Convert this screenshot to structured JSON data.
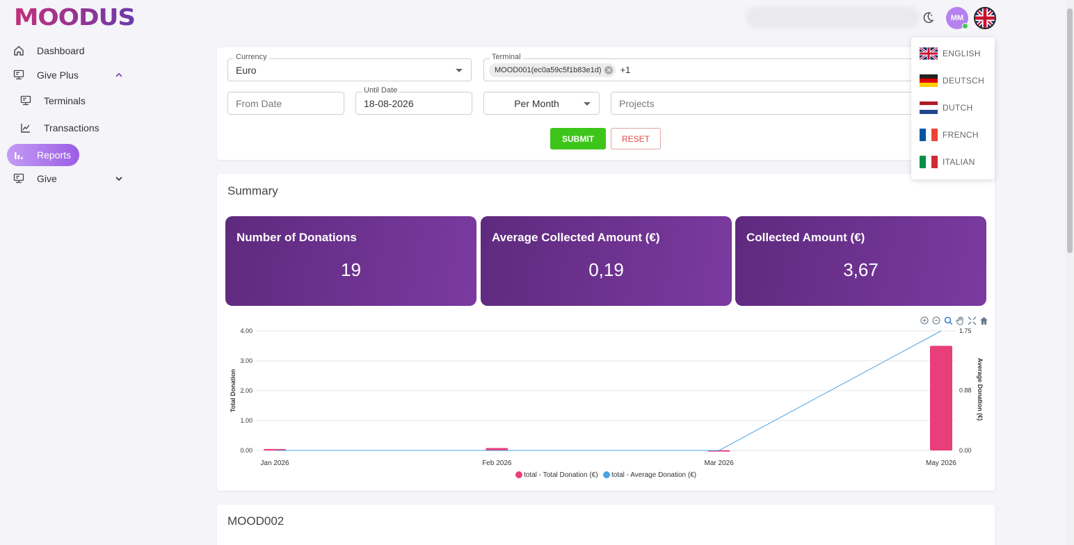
{
  "brand": {
    "logo_text": "MOODUS"
  },
  "sidebar": {
    "items": [
      {
        "label": "Dashboard",
        "icon": "home-icon"
      },
      {
        "label": "Give Plus",
        "icon": "terminal-icon"
      },
      {
        "label": "Terminals",
        "icon": "terminal-icon"
      },
      {
        "label": "Transactions",
        "icon": "chart-line-icon"
      },
      {
        "label": "Reports",
        "icon": "bar-chart-icon"
      },
      {
        "label": "Give",
        "icon": "terminal-icon"
      }
    ]
  },
  "topbar": {
    "avatar_initials": "MM"
  },
  "filters": {
    "currency_label": "Currency",
    "currency_value": "Euro",
    "terminal_label": "Terminal",
    "terminal_chip": "MOOD001(ec0a59c5f1b83e1d)",
    "terminal_more": "+1",
    "from_date_placeholder": "From Date",
    "until_date_label": "Until Date",
    "until_date_value": "18-08-2026",
    "period_value": "Per Month",
    "projects_placeholder": "Projects",
    "submit_label": "SUBMIT",
    "reset_label": "RESET"
  },
  "summary": {
    "title": "Summary",
    "stats": [
      {
        "title": "Number of Donations",
        "value": "19"
      },
      {
        "title": "Average Collected Amount (€)",
        "value": "0,19"
      },
      {
        "title": "Collected Amount (€)",
        "value": "3,67"
      }
    ]
  },
  "chart_data": {
    "type": "bar",
    "categories": [
      "Jan 2026",
      "Feb 2026",
      "Mar 2026",
      "May 2026"
    ],
    "series": [
      {
        "name": "total - Total Donation (€)",
        "type": "bar",
        "axis": "left",
        "color": "#e83e7a",
        "values": [
          0.05,
          0.08,
          0.01,
          3.5
        ]
      },
      {
        "name": "total - Average Donation (€)",
        "type": "line",
        "axis": "right",
        "color": "#4aa3e6",
        "values": [
          0.0,
          0.0,
          0.0,
          1.75
        ]
      }
    ],
    "ylabel": "Total Donation",
    "y2label": "Average Donation (€)",
    "ylim": [
      0,
      4
    ],
    "y2lim": [
      0,
      1.75
    ],
    "yticks": [
      "0.00",
      "1.00",
      "2.00",
      "3.00",
      "4.00"
    ],
    "y2ticks": [
      "0.00",
      "0.88",
      "1.75"
    ],
    "grid": true,
    "legend": "bottom-center"
  },
  "next_section": {
    "title": "MOOD002"
  },
  "languages": [
    {
      "label": "ENGLISH",
      "flag": "uk-flag-icon"
    },
    {
      "label": "DEUTSCH",
      "flag": "germany-flag-icon"
    },
    {
      "label": "DUTCH",
      "flag": "netherlands-flag-icon"
    },
    {
      "label": "FRENCH",
      "flag": "france-flag-icon"
    },
    {
      "label": "ITALIAN",
      "flag": "italy-flag-icon"
    }
  ],
  "colors": {
    "accent": "#7b3aa0",
    "submit": "#3ec51a",
    "reset": "#e04848",
    "bar": "#e83e7a",
    "line": "#4aa3e6"
  }
}
